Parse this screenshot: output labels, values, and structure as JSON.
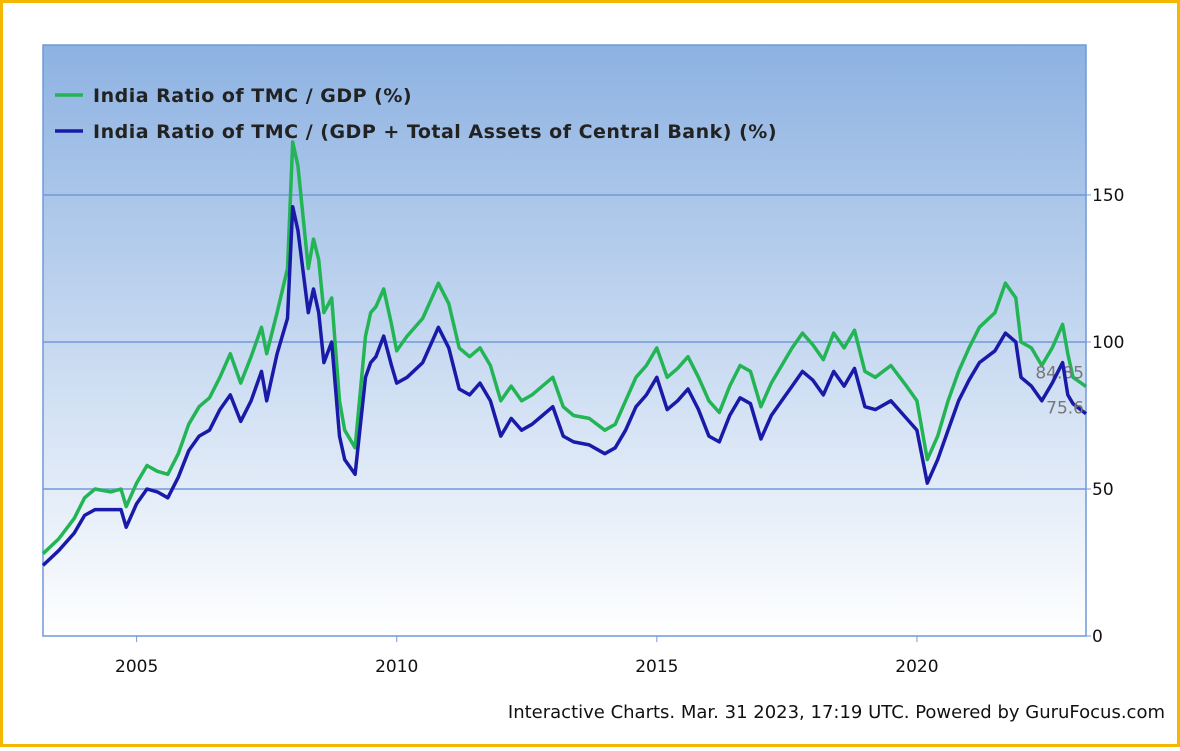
{
  "chart_data": {
    "type": "line",
    "series": [
      {
        "name": "India Ratio of TMC / GDP (%)",
        "color": "#22b455",
        "values": [
          28,
          33,
          40,
          47,
          50,
          49,
          50,
          44,
          52,
          58,
          56,
          55,
          62,
          72,
          78,
          81,
          88,
          96,
          86,
          95,
          105,
          96,
          110,
          125,
          168,
          160,
          125,
          135,
          128,
          110,
          115,
          80,
          70,
          64,
          102,
          110,
          112,
          118,
          106,
          97,
          102,
          108,
          120,
          113,
          98,
          95,
          98,
          92,
          80,
          85,
          80,
          82,
          85,
          88,
          78,
          75,
          74,
          70,
          72,
          80,
          88,
          92,
          98,
          88,
          91,
          95,
          88,
          80,
          76,
          85,
          92,
          90,
          78,
          86,
          92,
          98,
          103,
          99,
          94,
          103,
          98,
          104,
          90,
          88,
          92,
          85,
          80,
          60,
          68,
          80,
          90,
          98,
          105,
          110,
          120,
          115,
          100,
          98,
          92,
          98,
          106,
          96,
          88,
          84.85
        ]
      },
      {
        "name": "India Ratio of TMC / (GDP + Total Assets of Central Bank) (%)",
        "color": "#1a1aa8",
        "values": [
          24,
          29,
          35,
          41,
          43,
          43,
          43,
          37,
          45,
          50,
          49,
          47,
          54,
          63,
          68,
          70,
          77,
          82,
          73,
          80,
          90,
          80,
          96,
          108,
          146,
          138,
          110,
          118,
          110,
          93,
          100,
          68,
          60,
          55,
          88,
          93,
          95,
          102,
          92,
          86,
          88,
          93,
          105,
          98,
          84,
          82,
          86,
          80,
          68,
          74,
          70,
          72,
          75,
          78,
          68,
          66,
          65,
          62,
          64,
          70,
          78,
          82,
          88,
          77,
          80,
          84,
          77,
          68,
          66,
          75,
          81,
          79,
          67,
          75,
          80,
          85,
          90,
          87,
          82,
          90,
          85,
          91,
          78,
          77,
          80,
          74,
          70,
          52,
          60,
          70,
          80,
          87,
          93,
          97,
          103,
          100,
          88,
          85,
          80,
          86,
          93,
          82,
          79,
          75.6
        ]
      }
    ],
    "x": [
      2003.2,
      2003.5,
      2003.8,
      2004.0,
      2004.2,
      2004.5,
      2004.7,
      2004.8,
      2005.0,
      2005.2,
      2005.4,
      2005.6,
      2005.8,
      2006.0,
      2006.2,
      2006.4,
      2006.6,
      2006.8,
      2007.0,
      2007.2,
      2007.4,
      2007.5,
      2007.7,
      2007.9,
      2008.0,
      2008.1,
      2008.3,
      2008.4,
      2008.5,
      2008.6,
      2008.75,
      2008.9,
      2009.0,
      2009.2,
      2009.4,
      2009.5,
      2009.6,
      2009.75,
      2009.9,
      2010.0,
      2010.2,
      2010.5,
      2010.8,
      2011.0,
      2011.2,
      2011.4,
      2011.6,
      2011.8,
      2012.0,
      2012.2,
      2012.4,
      2012.6,
      2012.8,
      2013.0,
      2013.2,
      2013.4,
      2013.7,
      2014.0,
      2014.2,
      2014.4,
      2014.6,
      2014.8,
      2015.0,
      2015.2,
      2015.4,
      2015.6,
      2015.8,
      2016.0,
      2016.2,
      2016.4,
      2016.6,
      2016.8,
      2017.0,
      2017.2,
      2017.4,
      2017.6,
      2017.8,
      2018.0,
      2018.2,
      2018.4,
      2018.6,
      2018.8,
      2019.0,
      2019.2,
      2019.5,
      2019.8,
      2020.0,
      2020.2,
      2020.4,
      2020.6,
      2020.8,
      2021.0,
      2021.2,
      2021.5,
      2021.7,
      2021.9,
      2022.0,
      2022.2,
      2022.4,
      2022.6,
      2022.8,
      2022.9,
      2023.0,
      2023.25
    ],
    "xlim": [
      2003.2,
      2023.25
    ],
    "xticks": [
      2005,
      2010,
      2015,
      2020
    ],
    "ylim": [
      0,
      201
    ],
    "yticks": [
      0,
      50,
      100,
      150
    ],
    "grid": true,
    "legend": "upper left",
    "footer": "Interactive Charts. Mar. 31 2023, 17:19 UTC. Powered by GuruFocus.com"
  }
}
